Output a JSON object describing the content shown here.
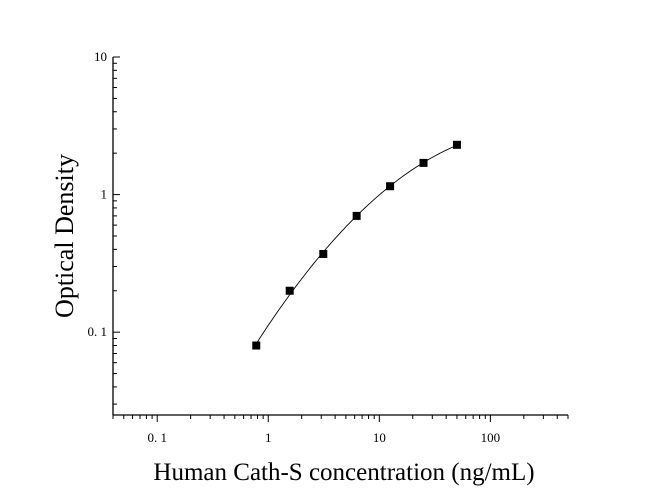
{
  "chart_data": {
    "type": "scatter",
    "xlabel": "Human Cath-S concentration (ng/mL)",
    "ylabel": "Optical Density",
    "x_scale": "log",
    "y_scale": "log",
    "xlim": [
      0.04,
      500
    ],
    "ylim": [
      0.025,
      10
    ],
    "x_ticks": [
      {
        "value": 0.1,
        "label": "0. 1"
      },
      {
        "value": 1,
        "label": "1"
      },
      {
        "value": 10,
        "label": "10"
      },
      {
        "value": 100,
        "label": "100"
      }
    ],
    "y_ticks": [
      {
        "value": 0.1,
        "label": "0. 1"
      },
      {
        "value": 1,
        "label": "1"
      },
      {
        "value": 10,
        "label": "10"
      }
    ],
    "grid": false,
    "legend": "none",
    "series": [
      {
        "x": [
          0.78,
          1.56,
          3.13,
          6.25,
          12.5,
          25,
          50
        ],
        "y": [
          0.08,
          0.2,
          0.37,
          0.7,
          1.15,
          1.7,
          2.3
        ],
        "marker": "square",
        "fit_line": true
      }
    ],
    "colors": {
      "marker": "#000000",
      "line": "#000000",
      "axis": "#000000"
    }
  }
}
